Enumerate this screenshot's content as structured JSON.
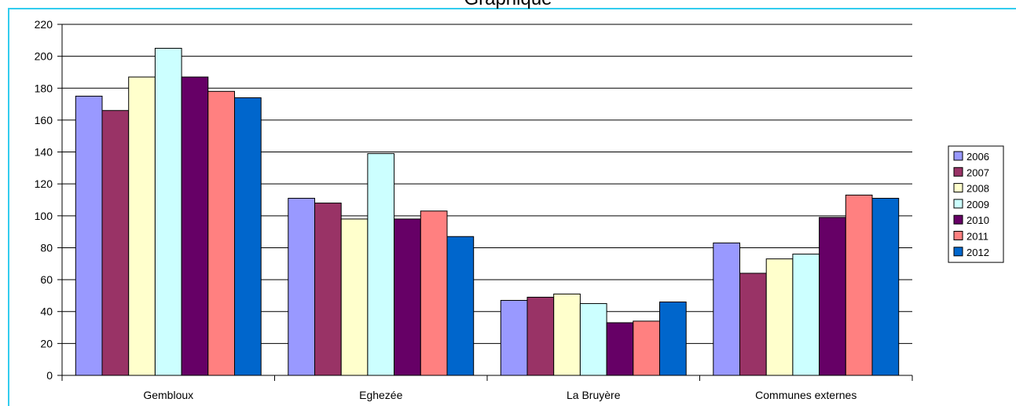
{
  "chart_data": {
    "type": "bar",
    "title": "Graphique",
    "xlabel": "",
    "ylabel": "",
    "ylim": [
      0,
      220
    ],
    "yticks": [
      0,
      20,
      40,
      60,
      80,
      100,
      120,
      140,
      160,
      180,
      200,
      220
    ],
    "grid": true,
    "legend_position": "right",
    "categories": [
      "Gembloux",
      "Eghezée",
      "La Bruyère",
      "Communes externes"
    ],
    "series": [
      {
        "name": "2006",
        "color": "#9999ff",
        "values": [
          175,
          111,
          47,
          83
        ]
      },
      {
        "name": "2007",
        "color": "#993366",
        "values": [
          166,
          108,
          49,
          64
        ]
      },
      {
        "name": "2008",
        "color": "#ffffcc",
        "values": [
          187,
          98,
          51,
          73
        ]
      },
      {
        "name": "2009",
        "color": "#ccffff",
        "values": [
          205,
          139,
          45,
          76
        ]
      },
      {
        "name": "2010",
        "color": "#660066",
        "values": [
          187,
          98,
          33,
          99
        ]
      },
      {
        "name": "2011",
        "color": "#ff8080",
        "values": [
          178,
          103,
          34,
          113
        ]
      },
      {
        "name": "2012",
        "color": "#0066cc",
        "values": [
          174,
          87,
          46,
          111
        ]
      }
    ]
  }
}
